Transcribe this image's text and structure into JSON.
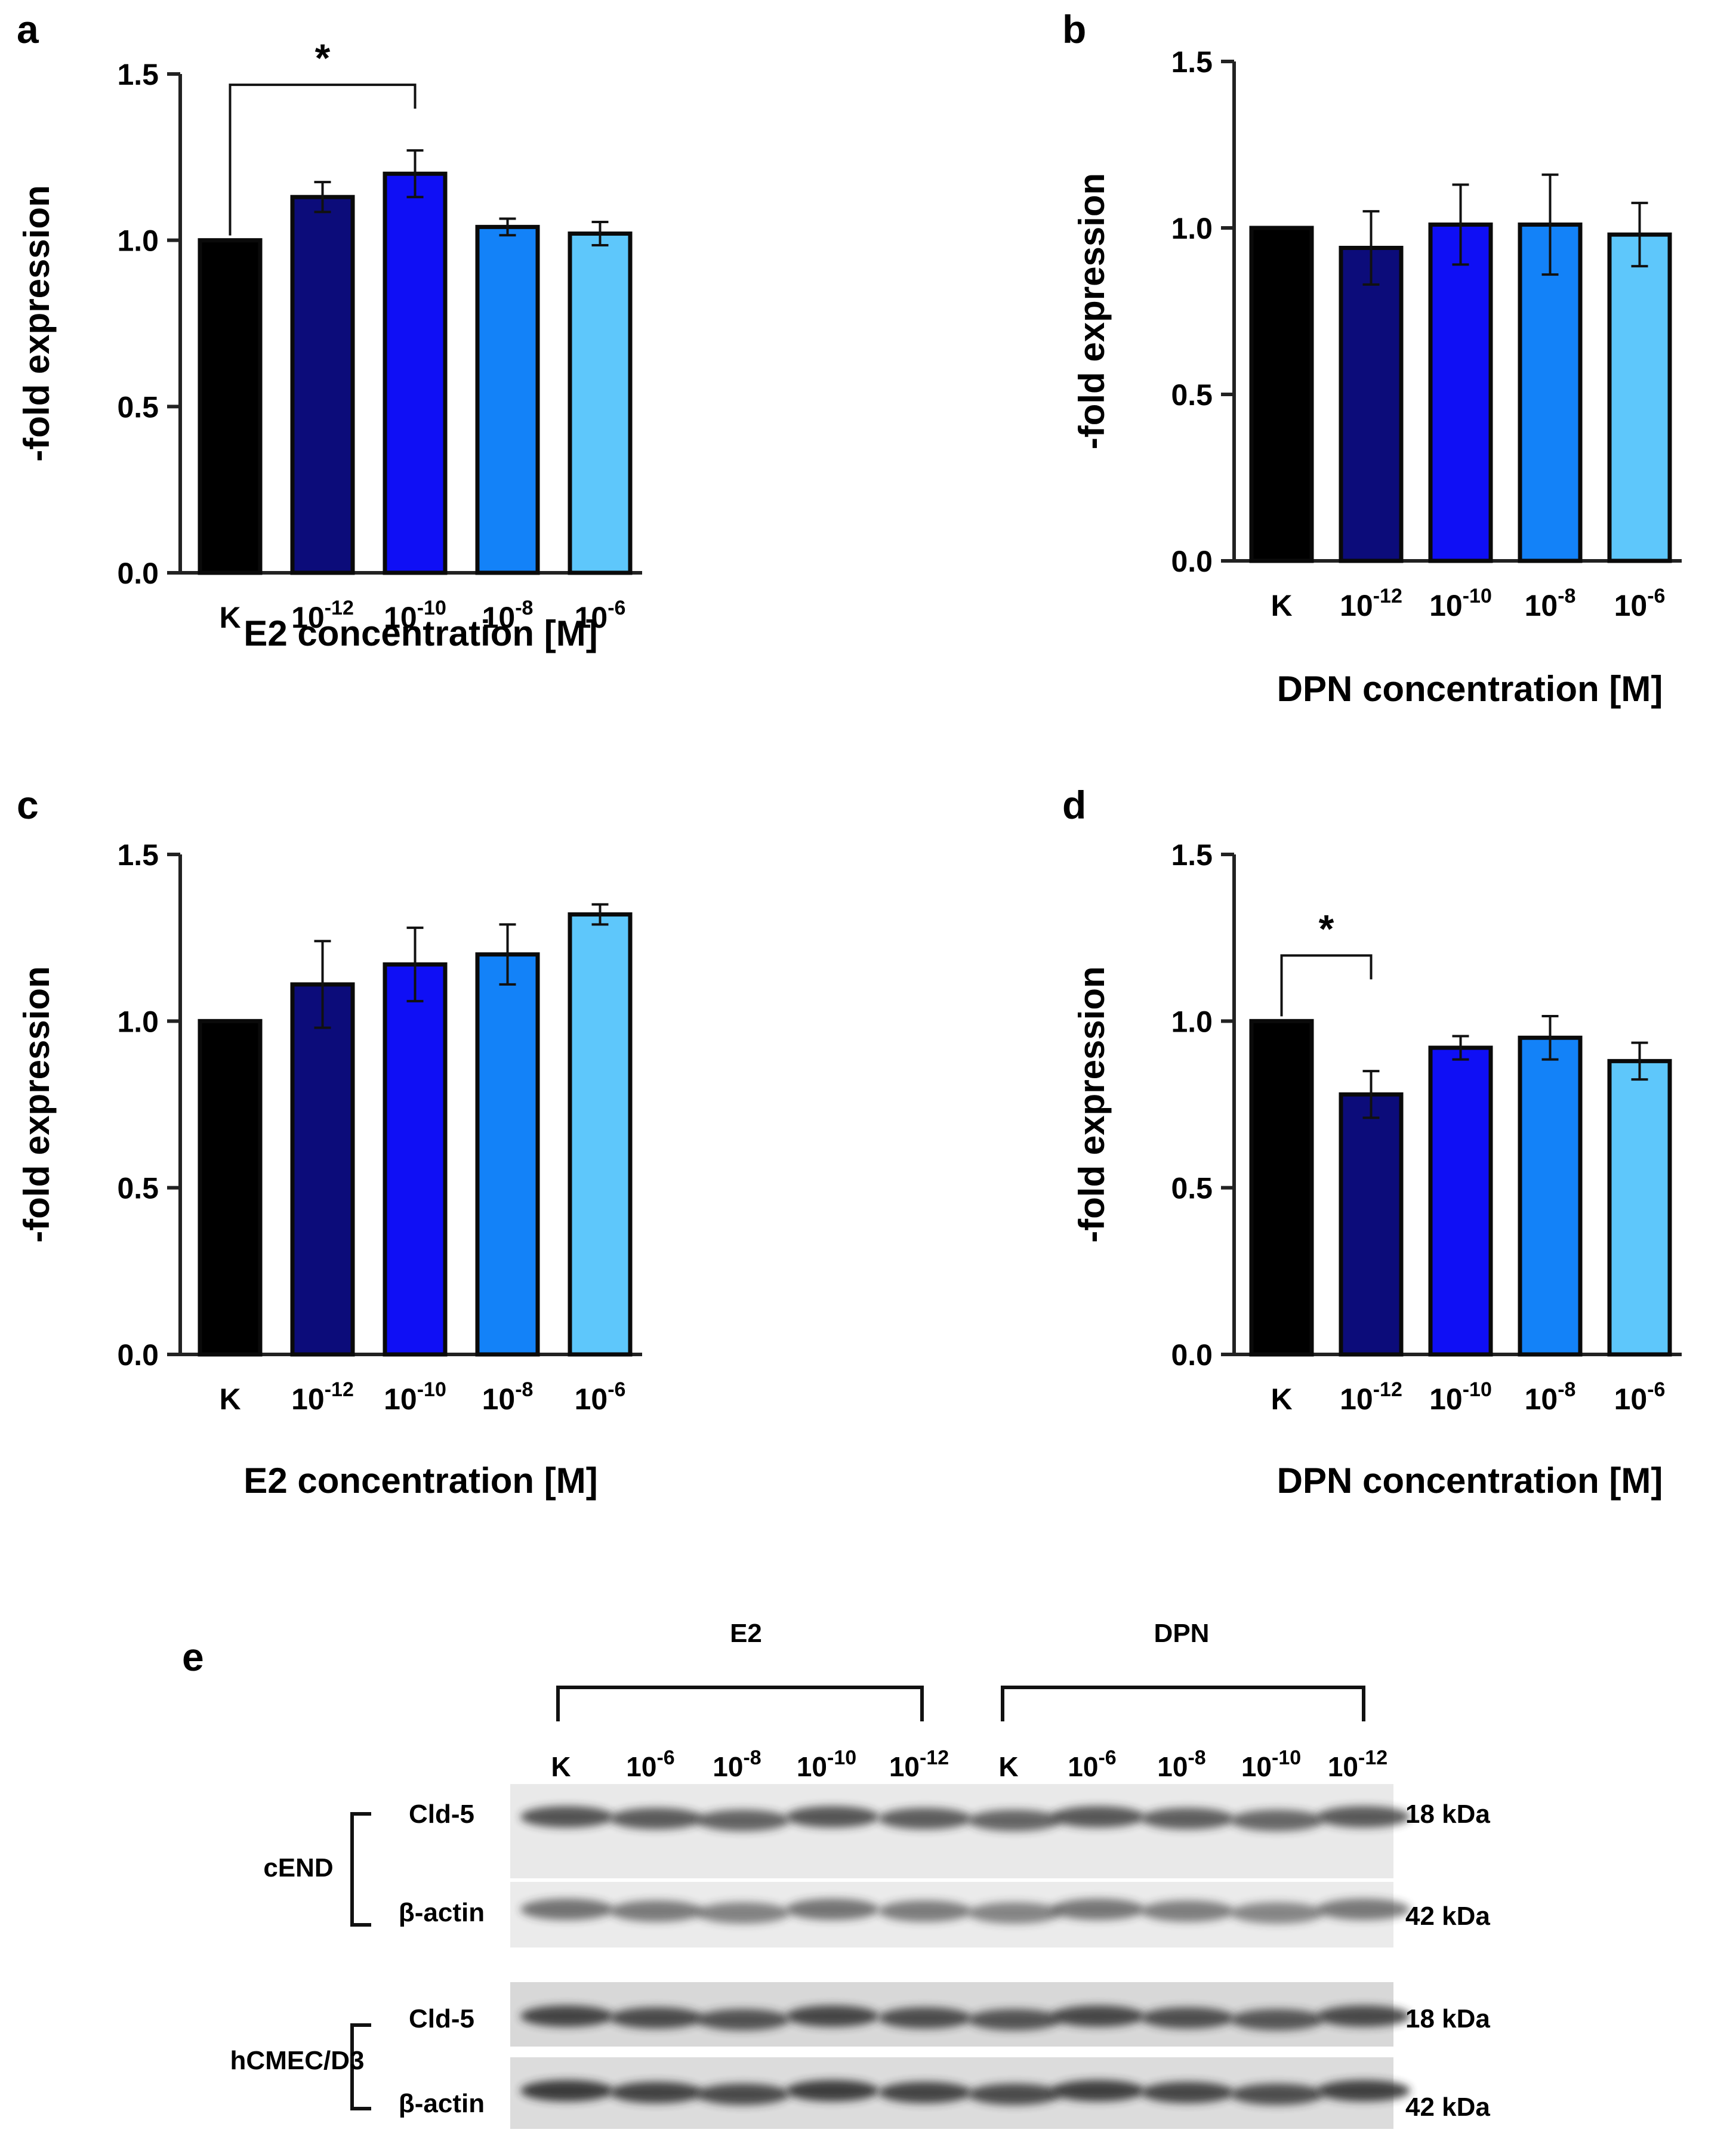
{
  "figure": {
    "panel_letters": [
      "a",
      "b",
      "c",
      "d",
      "e"
    ]
  },
  "colors": {
    "K": "#000000",
    "c12": "#0c0c7a",
    "c10": "#0f0ff5",
    "c8": "#1382f8",
    "c6": "#5ec7fb"
  },
  "chart_data": [
    {
      "panel": "a",
      "type": "bar",
      "categories": [
        {
          "base": "K",
          "exp": ""
        },
        {
          "base": "10",
          "exp": "-12"
        },
        {
          "base": "10",
          "exp": "-10"
        },
        {
          "base": "10",
          "exp": "-8"
        },
        {
          "base": "10",
          "exp": "-6"
        }
      ],
      "values": [
        1.0,
        1.13,
        1.2,
        1.04,
        1.02
      ],
      "errors": [
        0,
        0.045,
        0.07,
        0.025,
        0.035
      ],
      "colors": [
        "#000000",
        "#0c0c7a",
        "#0f0ff5",
        "#1382f8",
        "#5ec7fb"
      ],
      "xlabel": "E2 concentration [M]",
      "ylabel": "-fold expression",
      "ylim": [
        0,
        1.5
      ],
      "yticks": [
        "0.0",
        "0.5",
        "1.0",
        "1.5"
      ],
      "significance": [
        {
          "from": 0,
          "to": 2,
          "label": "*"
        }
      ]
    },
    {
      "panel": "b",
      "type": "bar",
      "categories": [
        {
          "base": "K",
          "exp": ""
        },
        {
          "base": "10",
          "exp": "-12"
        },
        {
          "base": "10",
          "exp": "-10"
        },
        {
          "base": "10",
          "exp": "-8"
        },
        {
          "base": "10",
          "exp": "-6"
        }
      ],
      "values": [
        1.0,
        0.94,
        1.01,
        1.01,
        0.98
      ],
      "errors": [
        0,
        0.11,
        0.12,
        0.15,
        0.095
      ],
      "colors": [
        "#000000",
        "#0c0c7a",
        "#0f0ff5",
        "#1382f8",
        "#5ec7fb"
      ],
      "xlabel": "DPN concentration [M]",
      "ylabel": "-fold expression",
      "ylim": [
        0,
        1.5
      ],
      "yticks": [
        "0.0",
        "0.5",
        "1.0",
        "1.5"
      ],
      "significance": []
    },
    {
      "panel": "c",
      "type": "bar",
      "categories": [
        {
          "base": "K",
          "exp": ""
        },
        {
          "base": "10",
          "exp": "-12"
        },
        {
          "base": "10",
          "exp": "-10"
        },
        {
          "base": "10",
          "exp": "-8"
        },
        {
          "base": "10",
          "exp": "-6"
        }
      ],
      "values": [
        1.0,
        1.11,
        1.17,
        1.2,
        1.32
      ],
      "errors": [
        0,
        0.13,
        0.11,
        0.09,
        0.03
      ],
      "colors": [
        "#000000",
        "#0c0c7a",
        "#0f0ff5",
        "#1382f8",
        "#5ec7fb"
      ],
      "xlabel": "E2 concentration [M]",
      "ylabel": "-fold expression",
      "ylim": [
        0,
        1.5
      ],
      "yticks": [
        "0.0",
        "0.5",
        "1.0",
        "1.5"
      ],
      "significance": []
    },
    {
      "panel": "d",
      "type": "bar",
      "categories": [
        {
          "base": "K",
          "exp": ""
        },
        {
          "base": "10",
          "exp": "-12"
        },
        {
          "base": "10",
          "exp": "-10"
        },
        {
          "base": "10",
          "exp": "-8"
        },
        {
          "base": "10",
          "exp": "-6"
        }
      ],
      "values": [
        1.0,
        0.78,
        0.92,
        0.95,
        0.88
      ],
      "errors": [
        0,
        0.07,
        0.035,
        0.065,
        0.055
      ],
      "colors": [
        "#000000",
        "#0c0c7a",
        "#0f0ff5",
        "#1382f8",
        "#5ec7fb"
      ],
      "xlabel": "DPN concentration [M]",
      "ylabel": "-fold expression",
      "ylim": [
        0,
        1.5
      ],
      "yticks": [
        "0.0",
        "0.5",
        "1.0",
        "1.5"
      ],
      "significance": [
        {
          "from": 0,
          "to": 1,
          "label": "*"
        }
      ]
    }
  ],
  "western_blot": {
    "panel": "e",
    "groups": [
      {
        "label": "E2",
        "lanes": [
          {
            "base": "K",
            "exp": ""
          },
          {
            "base": "10",
            "exp": "-6"
          },
          {
            "base": "10",
            "exp": "-8"
          },
          {
            "base": "10",
            "exp": "-10"
          },
          {
            "base": "10",
            "exp": "-12"
          }
        ]
      },
      {
        "label": "DPN",
        "lanes": [
          {
            "base": "K",
            "exp": ""
          },
          {
            "base": "10",
            "exp": "-6"
          },
          {
            "base": "10",
            "exp": "-8"
          },
          {
            "base": "10",
            "exp": "-10"
          },
          {
            "base": "10",
            "exp": "-12"
          }
        ]
      }
    ],
    "cell_lines": [
      {
        "name": "cEND",
        "rows": [
          {
            "protein": "Cld-5",
            "size": "18 kDa"
          },
          {
            "protein": "β-actin",
            "size": "42 kDa"
          }
        ]
      },
      {
        "name": "hCMEC/D3",
        "rows": [
          {
            "protein": "Cld-5",
            "size": "18 kDa"
          },
          {
            "protein": "β-actin",
            "size": "42 kDa"
          }
        ]
      }
    ]
  }
}
